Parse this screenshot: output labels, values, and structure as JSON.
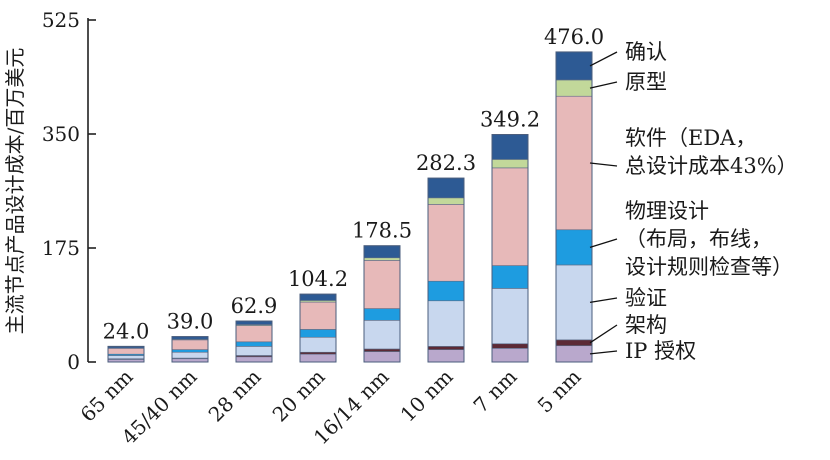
{
  "chart_data": {
    "type": "bar",
    "stacked": true,
    "title": "",
    "xlabel": "",
    "ylabel": "主流节点产品设计成本/百万美元",
    "ylim": [
      0,
      525
    ],
    "yticks": [
      0,
      175,
      350,
      525
    ],
    "ytick_labels": [
      "0",
      "175",
      "350",
      "525"
    ],
    "categories": [
      "65 nm",
      "45/40 nm",
      "28 nm",
      "20 nm",
      "16/14 nm",
      "10 nm",
      "7 nm",
      "5 nm"
    ],
    "totals": [
      24.0,
      39.0,
      62.9,
      104.2,
      178.5,
      282.3,
      349.2,
      476.0
    ],
    "total_labels": [
      "24.0",
      "39.0",
      "62.9",
      "104.2",
      "178.5",
      "282.3",
      "349.2",
      "476.0"
    ],
    "series": [
      {
        "name": "IP 授权",
        "color": "#b9a8cc",
        "values": [
          4,
          5,
          8,
          12,
          16,
          19,
          21,
          25
        ]
      },
      {
        "name": "架构",
        "color": "#5c2a35",
        "values": [
          1,
          1,
          2,
          3,
          4,
          5,
          7,
          9
        ]
      },
      {
        "name": "验证",
        "color": "#c8d7ee",
        "values": [
          5,
          9,
          14,
          23,
          44,
          70,
          85,
          115
        ]
      },
      {
        "name": "物理设计",
        "color": "#1e9ce0",
        "values": [
          2,
          4,
          7,
          12,
          18,
          30,
          35,
          54
        ]
      },
      {
        "name": "软件",
        "color": "#e7b9b9",
        "values": [
          9,
          15,
          25,
          42,
          74,
          118,
          150,
          205
        ]
      },
      {
        "name": "原型",
        "color": "#c2d89a",
        "values": [
          0.5,
          1,
          1.5,
          2.5,
          4,
          10,
          13,
          25
        ]
      },
      {
        "name": "确认",
        "color": "#2d5a94",
        "values": [
          2.5,
          4,
          5.4,
          9.7,
          18.5,
          30.3,
          38.2,
          43
        ]
      }
    ],
    "legend": [
      {
        "lines": [
          "确认"
        ]
      },
      {
        "lines": [
          "原型"
        ]
      },
      {
        "lines": [
          "软件（EDA，",
          "总设计成本43%）"
        ]
      },
      {
        "lines": [
          "物理设计",
          "（布局，布线，",
          "设计规则检查等）"
        ]
      },
      {
        "lines": [
          "验证"
        ]
      },
      {
        "lines": [
          "架构"
        ]
      },
      {
        "lines": [
          "IP 授权"
        ]
      }
    ],
    "legend_placement": "right, with leader lines to the 5 nm bar"
  }
}
